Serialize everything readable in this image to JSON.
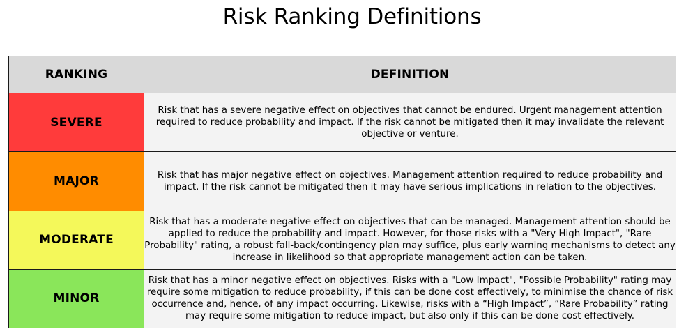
{
  "title": "Risk Ranking Definitions",
  "table": {
    "headers": {
      "ranking": "RANKING",
      "definition": "DEFINITION"
    },
    "rows": [
      {
        "ranking": "SEVERE",
        "color": "#ff3b3b",
        "definition": "Risk that has a severe negative effect on objectives that cannot be endured. Urgent management attention required to reduce probability and impact. If the risk cannot be mitigated then it may invalidate the relevant objective or venture."
      },
      {
        "ranking": "MAJOR",
        "color": "#ff8c00",
        "definition": "Risk that has major negative effect on objectives. Management attention required to reduce probability and impact. If the risk cannot be mitigated then it may have serious implications in relation to the objectives."
      },
      {
        "ranking": "MODERATE",
        "color": "#f4f85a",
        "definition": "Risk that has a moderate negative effect on objectives that can be managed. Management attention should be applied to reduce the probability and impact. However, for those risks with a \"Very High Impact\", \"Rare Probability\" rating, a robust fall-back/contingency plan may suffice, plus early warning mechanisms to detect any increase in likelihood so that appropriate management action can be taken."
      },
      {
        "ranking": "MINOR",
        "color": "#8ae65a",
        "definition": "Risk that has a minor negative effect on objectives. Risks with a \"Low Impact\", \"Possible Probability\" rating may require some mitigation to reduce probability, if this can be done cost effectively, to minimise the chance of risk occurrence and, hence, of any impact occurring. Likewise, risks with a “High Impact”, “Rare Probability” rating may require some mitigation to reduce impact, but also only if this can be done cost effectively."
      }
    ]
  }
}
